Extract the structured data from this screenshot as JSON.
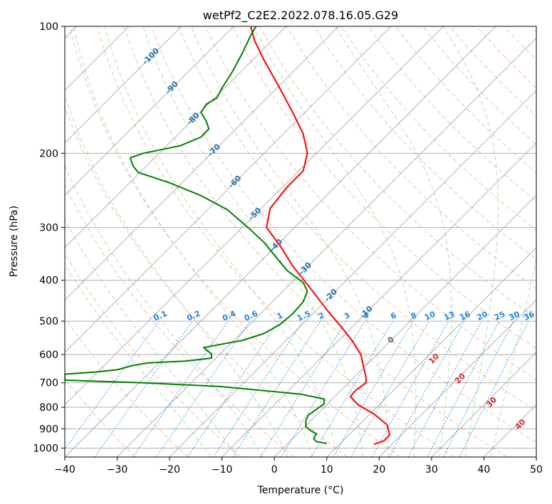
{
  "chart_data": {
    "type": "line",
    "title": "wetPf2_C2E2.2022.078.16.05.G29",
    "xlabel": "Temperature (°C)",
    "ylabel": "Pressure (hPa)",
    "xlim": [
      -40,
      50
    ],
    "ylim": [
      1050,
      100
    ],
    "y_scale": "log",
    "x_ticks": [
      "−40",
      "−30",
      "−20",
      "−10",
      "0",
      "10",
      "20",
      "30",
      "40",
      "50"
    ],
    "x_tick_values": [
      -40,
      -30,
      -20,
      -10,
      0,
      10,
      20,
      30,
      40,
      50
    ],
    "y_ticks": [
      "100",
      "200",
      "300",
      "400",
      "500",
      "600",
      "700",
      "800",
      "900",
      "1000"
    ],
    "y_tick_values": [
      100,
      200,
      300,
      400,
      500,
      600,
      700,
      800,
      900,
      1000
    ],
    "grid": true,
    "colors": {
      "temperature": "#ff0000",
      "dewpoint": "#008000",
      "dry_adiabat": "#f4a582",
      "moist_adiabat": "#a6d6a0",
      "mixing_ratio": "#1e88e5",
      "isotherm": "#9e9e9e",
      "isotherm_label": "#1f6fb4",
      "moist_label": "#d62728",
      "zero_isotherm_label": "#666666"
    },
    "isotherm_labels": [
      {
        "text": "-100",
        "t": -100,
        "p": 118
      },
      {
        "text": "-90",
        "t": -90,
        "p": 140
      },
      {
        "text": "-80",
        "t": -80,
        "p": 166
      },
      {
        "text": "-70",
        "t": -70,
        "p": 197
      },
      {
        "text": "-60",
        "t": -60,
        "p": 234
      },
      {
        "text": "-50",
        "t": -50,
        "p": 279
      },
      {
        "text": "-40",
        "t": -40,
        "p": 331
      },
      {
        "text": "-30",
        "t": -30,
        "p": 376
      },
      {
        "text": "-20",
        "t": -20,
        "p": 435
      },
      {
        "text": "-10",
        "t": -10,
        "p": 477
      },
      {
        "text": "0",
        "t": 0,
        "p": 555
      }
    ],
    "mixing_ratio_labels": [
      "0.1",
      "0.2",
      "0.4",
      "0.6",
      "1",
      "1.5",
      "2",
      "3",
      "4",
      "6",
      "8",
      "10",
      "13",
      "16",
      "20",
      "25",
      "30",
      "36"
    ],
    "mixing_ratio_values": [
      0.1,
      0.2,
      0.4,
      0.6,
      1,
      1.5,
      2,
      3,
      4,
      6,
      8,
      10,
      13,
      16,
      20,
      25,
      30,
      36
    ],
    "moist_labels": [
      {
        "text": "10",
        "t": 30.5,
        "p": 615
      },
      {
        "text": "20",
        "t": 35.5,
        "p": 685
      },
      {
        "text": "30",
        "t": 41.5,
        "p": 780
      },
      {
        "text": "40",
        "t": 47,
        "p": 880
      }
    ],
    "series": [
      {
        "name": "",
        "kind": "temperature",
        "points": [
          [
            19,
            980
          ],
          [
            21,
            960
          ],
          [
            22,
            930
          ],
          [
            21.5,
            880
          ],
          [
            19,
            830
          ],
          [
            16,
            790
          ],
          [
            14.5,
            755
          ],
          [
            15.5,
            730
          ],
          [
            17.5,
            700
          ],
          [
            17.5,
            680
          ],
          [
            17,
            640
          ],
          [
            16.5,
            600
          ],
          [
            15,
            560
          ],
          [
            13,
            520
          ],
          [
            10,
            470
          ],
          [
            7,
            420
          ],
          [
            3.5,
            370
          ],
          [
            1,
            330
          ],
          [
            -1.5,
            300
          ],
          [
            -0.8,
            270
          ],
          [
            2.5,
            240
          ],
          [
            5.5,
            220
          ],
          [
            6.3,
            200
          ],
          [
            5.5,
            180
          ],
          [
            3.5,
            160
          ],
          [
            1,
            140
          ],
          [
            -2,
            120
          ],
          [
            -3.8,
            108
          ],
          [
            -4.5,
            100
          ]
        ]
      },
      {
        "name": "",
        "kind": "dewpoint",
        "points": [
          [
            10,
            975
          ],
          [
            8,
            965
          ],
          [
            7.5,
            950
          ],
          [
            8,
            925
          ],
          [
            7,
            910
          ],
          [
            6,
            890
          ],
          [
            6,
            860
          ],
          [
            6.5,
            835
          ],
          [
            8,
            810
          ],
          [
            9.5,
            785
          ],
          [
            9.5,
            765
          ],
          [
            5,
            745
          ],
          [
            -10,
            715
          ],
          [
            -25,
            700
          ],
          [
            -40,
            690
          ],
          [
            -40,
            668
          ],
          [
            -34,
            660
          ],
          [
            -30,
            652
          ],
          [
            -27,
            637
          ],
          [
            -24,
            628
          ],
          [
            -17,
            622
          ],
          [
            -12,
            612
          ],
          [
            -12,
            598
          ],
          [
            -13.5,
            578
          ],
          [
            -11,
            570
          ],
          [
            -6,
            555
          ],
          [
            -2,
            535
          ],
          [
            1,
            510
          ],
          [
            3.5,
            480
          ],
          [
            5.5,
            450
          ],
          [
            6.3,
            425
          ],
          [
            5.5,
            405
          ],
          [
            2.5,
            380
          ],
          [
            0.5,
            355
          ],
          [
            -2,
            325
          ],
          [
            -5,
            300
          ],
          [
            -9,
            272
          ],
          [
            -14,
            252
          ],
          [
            -20,
            235
          ],
          [
            -26,
            222
          ],
          [
            -27,
            214
          ],
          [
            -27.5,
            205
          ],
          [
            -25,
            200
          ],
          [
            -18,
            192
          ],
          [
            -14,
            183
          ],
          [
            -12.5,
            175
          ],
          [
            -13,
            168
          ],
          [
            -14,
            160
          ],
          [
            -13,
            153
          ],
          [
            -11,
            148
          ],
          [
            -10,
            140
          ],
          [
            -8,
            128
          ],
          [
            -6,
            115
          ],
          [
            -4.5,
            105
          ],
          [
            -3.5,
            100
          ]
        ]
      }
    ]
  }
}
